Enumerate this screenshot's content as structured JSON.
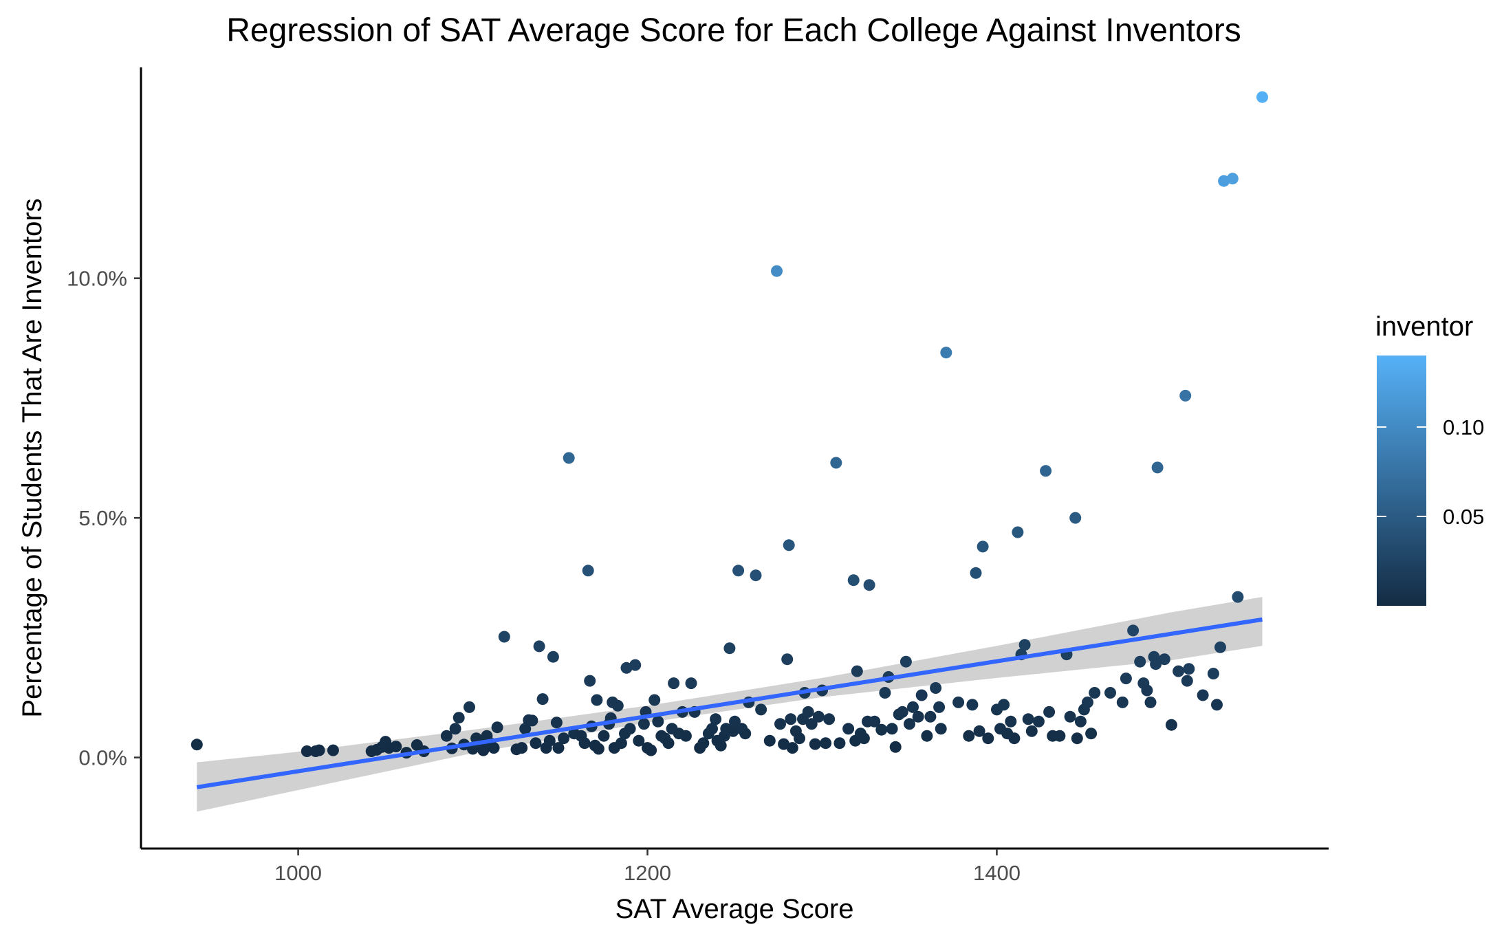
{
  "chart_data": {
    "type": "scatter",
    "title": "Regression of SAT Average Score for Each College Against Inventors",
    "xlabel": "SAT Average Score",
    "ylabel": "Percentage of Students That Are Inventors",
    "xlim": [
      910,
      1590
    ],
    "ylim": [
      -0.019,
      0.144
    ],
    "x_ticks": [
      {
        "value": 1000,
        "label": "1000"
      },
      {
        "value": 1200,
        "label": "1200"
      },
      {
        "value": 1400,
        "label": "1400"
      }
    ],
    "y_ticks": [
      {
        "value": 0.0,
        "label": "0.0%"
      },
      {
        "value": 0.05,
        "label": "5.0%"
      },
      {
        "value": 0.1,
        "label": "10.0%"
      }
    ],
    "legend": {
      "title": "inventor",
      "placement": "right",
      "min": 0.0,
      "max": 0.14,
      "color_low": "#132B43",
      "color_high": "#56B1F7",
      "ticks": [
        {
          "value": 0.05,
          "label": "0.05"
        },
        {
          "value": 0.1,
          "label": "0.10"
        }
      ]
    },
    "regression": {
      "x_start": 942,
      "y_start": -0.0062,
      "x_end": 1552,
      "y_end": 0.0288,
      "band": [
        {
          "x": 942,
          "lo": -0.0113,
          "hi": -0.001
        },
        {
          "x": 1000,
          "lo": -0.0068,
          "hi": 0.0012
        },
        {
          "x": 1100,
          "lo": 0.0009,
          "hi": 0.0058
        },
        {
          "x": 1200,
          "lo": 0.0073,
          "hi": 0.0108
        },
        {
          "x": 1300,
          "lo": 0.0126,
          "hi": 0.0166
        },
        {
          "x": 1400,
          "lo": 0.0166,
          "hi": 0.0233
        },
        {
          "x": 1500,
          "lo": 0.0203,
          "hi": 0.0303
        },
        {
          "x": 1552,
          "lo": 0.0233,
          "hi": 0.0335
        }
      ],
      "color": "#3366FF",
      "band_color": "#999999"
    },
    "points": [
      [
        942,
        0.0027
      ],
      [
        1005,
        0.0013
      ],
      [
        1010,
        0.0013
      ],
      [
        1012,
        0.0015
      ],
      [
        1020,
        0.0015
      ],
      [
        1042,
        0.0013
      ],
      [
        1045,
        0.0016
      ],
      [
        1048,
        0.0022
      ],
      [
        1050,
        0.0033
      ],
      [
        1052,
        0.002
      ],
      [
        1056,
        0.0023
      ],
      [
        1062,
        0.001
      ],
      [
        1068,
        0.0026
      ],
      [
        1072,
        0.0013
      ],
      [
        1085,
        0.0045
      ],
      [
        1088,
        0.0019
      ],
      [
        1090,
        0.006
      ],
      [
        1092,
        0.0083
      ],
      [
        1095,
        0.0027
      ],
      [
        1098,
        0.0105
      ],
      [
        1100,
        0.0018
      ],
      [
        1102,
        0.004
      ],
      [
        1104,
        0.0028
      ],
      [
        1106,
        0.0015
      ],
      [
        1108,
        0.0045
      ],
      [
        1110,
        0.003
      ],
      [
        1112,
        0.002
      ],
      [
        1114,
        0.0063
      ],
      [
        1118,
        0.0252
      ],
      [
        1125,
        0.0017
      ],
      [
        1128,
        0.002
      ],
      [
        1130,
        0.006
      ],
      [
        1132,
        0.0078
      ],
      [
        1134,
        0.0077
      ],
      [
        1136,
        0.003
      ],
      [
        1138,
        0.0232
      ],
      [
        1140,
        0.0122
      ],
      [
        1142,
        0.002
      ],
      [
        1144,
        0.0035
      ],
      [
        1146,
        0.021
      ],
      [
        1148,
        0.0073
      ],
      [
        1149,
        0.002
      ],
      [
        1152,
        0.004
      ],
      [
        1155,
        0.0625
      ],
      [
        1158,
        0.005
      ],
      [
        1162,
        0.0045
      ],
      [
        1164,
        0.003
      ],
      [
        1166,
        0.039
      ],
      [
        1167,
        0.016
      ],
      [
        1168,
        0.0065
      ],
      [
        1170,
        0.0025
      ],
      [
        1171,
        0.012
      ],
      [
        1172,
        0.0018
      ],
      [
        1175,
        0.0045
      ],
      [
        1178,
        0.007
      ],
      [
        1179,
        0.0082
      ],
      [
        1180,
        0.0115
      ],
      [
        1181,
        0.002
      ],
      [
        1183,
        0.0108
      ],
      [
        1185,
        0.003
      ],
      [
        1187,
        0.005
      ],
      [
        1188,
        0.0187
      ],
      [
        1190,
        0.006
      ],
      [
        1193,
        0.0193
      ],
      [
        1195,
        0.0035
      ],
      [
        1198,
        0.007
      ],
      [
        1199,
        0.0095
      ],
      [
        1200,
        0.002
      ],
      [
        1202,
        0.0015
      ],
      [
        1204,
        0.012
      ],
      [
        1206,
        0.0075
      ],
      [
        1208,
        0.0045
      ],
      [
        1210,
        0.004
      ],
      [
        1212,
        0.003
      ],
      [
        1214,
        0.006
      ],
      [
        1215,
        0.0155
      ],
      [
        1218,
        0.005
      ],
      [
        1220,
        0.0095
      ],
      [
        1222,
        0.0045
      ],
      [
        1225,
        0.0155
      ],
      [
        1227,
        0.0095
      ],
      [
        1230,
        0.002
      ],
      [
        1232,
        0.003
      ],
      [
        1235,
        0.005
      ],
      [
        1237,
        0.006
      ],
      [
        1239,
        0.008
      ],
      [
        1240,
        0.0035
      ],
      [
        1242,
        0.0025
      ],
      [
        1244,
        0.0045
      ],
      [
        1245,
        0.006
      ],
      [
        1247,
        0.0228
      ],
      [
        1249,
        0.0055
      ],
      [
        1250,
        0.0075
      ],
      [
        1252,
        0.039
      ],
      [
        1254,
        0.006
      ],
      [
        1256,
        0.005
      ],
      [
        1258,
        0.0115
      ],
      [
        1262,
        0.038
      ],
      [
        1265,
        0.01
      ],
      [
        1270,
        0.0035
      ],
      [
        1274,
        0.1015
      ],
      [
        1276,
        0.007
      ],
      [
        1278,
        0.0028
      ],
      [
        1280,
        0.0205
      ],
      [
        1281,
        0.0443
      ],
      [
        1282,
        0.008
      ],
      [
        1283,
        0.002
      ],
      [
        1285,
        0.0055
      ],
      [
        1287,
        0.004
      ],
      [
        1289,
        0.008
      ],
      [
        1290,
        0.0135
      ],
      [
        1292,
        0.0095
      ],
      [
        1294,
        0.007
      ],
      [
        1296,
        0.0028
      ],
      [
        1298,
        0.0085
      ],
      [
        1300,
        0.014
      ],
      [
        1302,
        0.003
      ],
      [
        1304,
        0.008
      ],
      [
        1308,
        0.0615
      ],
      [
        1310,
        0.003
      ],
      [
        1315,
        0.006
      ],
      [
        1318,
        0.037
      ],
      [
        1319,
        0.0035
      ],
      [
        1320,
        0.018
      ],
      [
        1322,
        0.005
      ],
      [
        1324,
        0.004
      ],
      [
        1326,
        0.0075
      ],
      [
        1327,
        0.036
      ],
      [
        1330,
        0.0075
      ],
      [
        1334,
        0.0058
      ],
      [
        1336,
        0.0135
      ],
      [
        1338,
        0.0168
      ],
      [
        1340,
        0.006
      ],
      [
        1342,
        0.0022
      ],
      [
        1344,
        0.009
      ],
      [
        1346,
        0.0095
      ],
      [
        1348,
        0.02
      ],
      [
        1350,
        0.007
      ],
      [
        1352,
        0.0105
      ],
      [
        1355,
        0.0085
      ],
      [
        1357,
        0.013
      ],
      [
        1360,
        0.0045
      ],
      [
        1362,
        0.0085
      ],
      [
        1365,
        0.0145
      ],
      [
        1367,
        0.0105
      ],
      [
        1368,
        0.006
      ],
      [
        1371,
        0.0845
      ],
      [
        1378,
        0.0115
      ],
      [
        1384,
        0.0045
      ],
      [
        1386,
        0.011
      ],
      [
        1388,
        0.0385
      ],
      [
        1390,
        0.0055
      ],
      [
        1392,
        0.044
      ],
      [
        1395,
        0.004
      ],
      [
        1400,
        0.01
      ],
      [
        1402,
        0.006
      ],
      [
        1404,
        0.011
      ],
      [
        1406,
        0.005
      ],
      [
        1408,
        0.0075
      ],
      [
        1410,
        0.004
      ],
      [
        1412,
        0.047
      ],
      [
        1414,
        0.0215
      ],
      [
        1416,
        0.0235
      ],
      [
        1418,
        0.008
      ],
      [
        1420,
        0.0055
      ],
      [
        1424,
        0.0075
      ],
      [
        1428,
        0.0598
      ],
      [
        1430,
        0.0095
      ],
      [
        1432,
        0.0045
      ],
      [
        1436,
        0.0045
      ],
      [
        1440,
        0.0215
      ],
      [
        1442,
        0.0085
      ],
      [
        1445,
        0.05
      ],
      [
        1446,
        0.004
      ],
      [
        1448,
        0.0075
      ],
      [
        1450,
        0.01
      ],
      [
        1452,
        0.0115
      ],
      [
        1454,
        0.005
      ],
      [
        1456,
        0.0135
      ],
      [
        1465,
        0.0135
      ],
      [
        1472,
        0.0115
      ],
      [
        1474,
        0.0165
      ],
      [
        1478,
        0.0265
      ],
      [
        1482,
        0.02
      ],
      [
        1484,
        0.0155
      ],
      [
        1486,
        0.014
      ],
      [
        1488,
        0.0115
      ],
      [
        1490,
        0.021
      ],
      [
        1491,
        0.0195
      ],
      [
        1492,
        0.0605
      ],
      [
        1496,
        0.0205
      ],
      [
        1500,
        0.0068
      ],
      [
        1504,
        0.018
      ],
      [
        1508,
        0.0755
      ],
      [
        1509,
        0.016
      ],
      [
        1510,
        0.0185
      ],
      [
        1518,
        0.013
      ],
      [
        1524,
        0.0175
      ],
      [
        1526,
        0.011
      ],
      [
        1528,
        0.023
      ],
      [
        1530,
        0.1203
      ],
      [
        1535,
        0.1208
      ],
      [
        1538,
        0.0335
      ],
      [
        1552,
        0.1378
      ]
    ]
  }
}
